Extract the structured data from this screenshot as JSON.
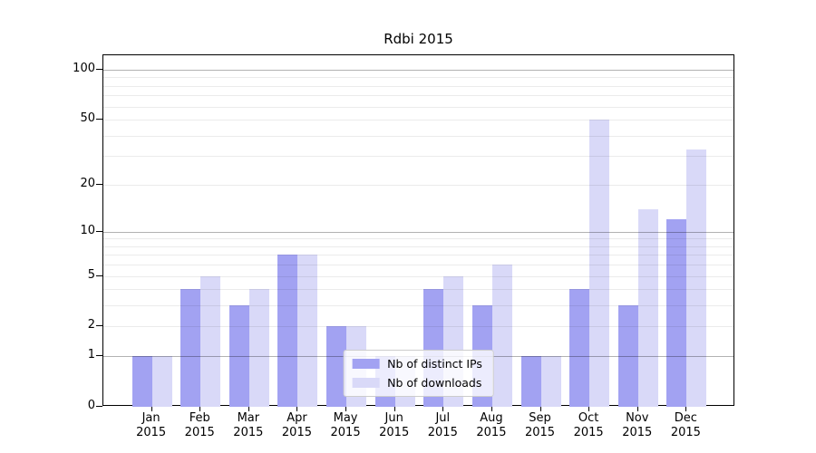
{
  "chart_data": {
    "type": "bar",
    "title": "Rdbi 2015",
    "categories": [
      "Jan",
      "Feb",
      "Mar",
      "Apr",
      "May",
      "Jun",
      "Jul",
      "Aug",
      "Sep",
      "Oct",
      "Nov",
      "Dec"
    ],
    "category_year": "2015",
    "series": [
      {
        "name": "Nb of distinct IPs",
        "color": "#a2a2f2",
        "values": [
          1,
          4,
          3,
          7,
          2,
          1,
          4,
          3,
          1,
          4,
          3,
          12
        ]
      },
      {
        "name": "Nb of downloads",
        "color": "#d9d9f8",
        "values": [
          1,
          5,
          4,
          7,
          2,
          1,
          5,
          6,
          1,
          50,
          14,
          33
        ]
      }
    ],
    "yscale": "log1p",
    "ylim": [
      0,
      122
    ],
    "yticks": [
      0,
      1,
      2,
      5,
      10,
      20,
      50,
      100
    ],
    "ytick_major_gridlines": [
      1,
      10,
      100
    ],
    "ytick_minor_gridlines": [
      2,
      3,
      4,
      5,
      6,
      7,
      8,
      9,
      20,
      30,
      40,
      50,
      60,
      70,
      80,
      90
    ],
    "grid": "horizontal",
    "legend_position": "lower center",
    "colors": {
      "background": "#ffffff",
      "spine": "#000000",
      "grid_major": "#b3b3b3",
      "grid_minor": "#ebebeb",
      "text": "#000000"
    }
  }
}
